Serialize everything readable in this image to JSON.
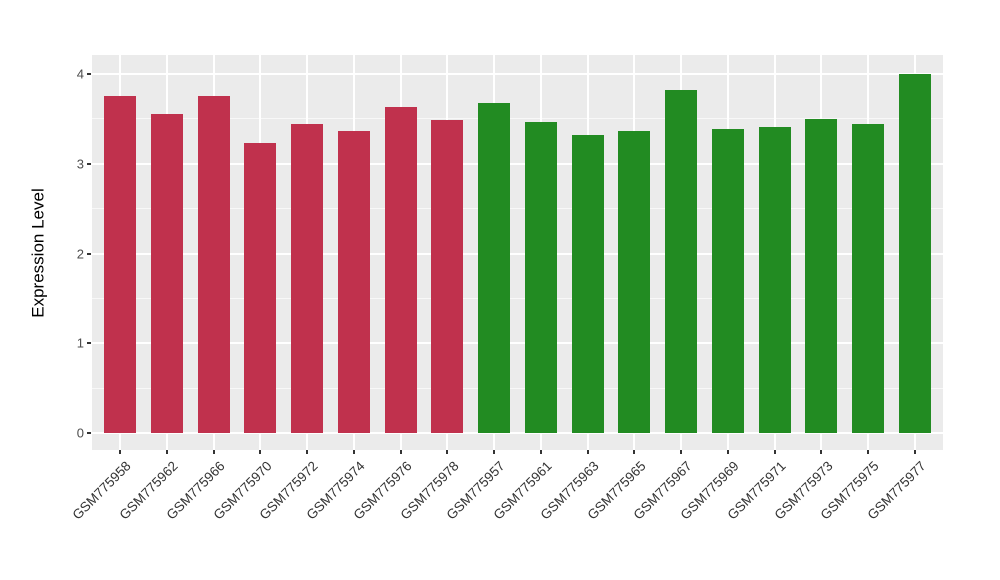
{
  "chart_data": {
    "type": "bar",
    "title": "",
    "xlabel": "",
    "ylabel": "Expression Level",
    "ylim": [
      -0.19,
      4.21
    ],
    "yticks": [
      0,
      1,
      2,
      3,
      4
    ],
    "grid": true,
    "legend": false,
    "panel_bg": "#EBEBEB",
    "grid_color": "#FFFFFF",
    "tick_mark_color": "#333333",
    "tick_label_color": "#4d4d4d",
    "bar_colors": {
      "red": "#C0314D",
      "green": "#228B22"
    },
    "bars": [
      {
        "label": "GSM775958",
        "value": 3.75,
        "color": "#C0314D"
      },
      {
        "label": "GSM775962",
        "value": 3.55,
        "color": "#C0314D"
      },
      {
        "label": "GSM775966",
        "value": 3.76,
        "color": "#C0314D"
      },
      {
        "label": "GSM775970",
        "value": 3.23,
        "color": "#C0314D"
      },
      {
        "label": "GSM775972",
        "value": 3.44,
        "color": "#C0314D"
      },
      {
        "label": "GSM775974",
        "value": 3.36,
        "color": "#C0314D"
      },
      {
        "label": "GSM775976",
        "value": 3.63,
        "color": "#C0314D"
      },
      {
        "label": "GSM775978",
        "value": 3.49,
        "color": "#C0314D"
      },
      {
        "label": "GSM775957",
        "value": 3.68,
        "color": "#228B22"
      },
      {
        "label": "GSM775961",
        "value": 3.47,
        "color": "#228B22"
      },
      {
        "label": "GSM775963",
        "value": 3.32,
        "color": "#228B22"
      },
      {
        "label": "GSM775965",
        "value": 3.36,
        "color": "#228B22"
      },
      {
        "label": "GSM775967",
        "value": 3.82,
        "color": "#228B22"
      },
      {
        "label": "GSM775969",
        "value": 3.39,
        "color": "#228B22"
      },
      {
        "label": "GSM775971",
        "value": 3.41,
        "color": "#228B22"
      },
      {
        "label": "GSM775973",
        "value": 3.5,
        "color": "#228B22"
      },
      {
        "label": "GSM775975",
        "value": 3.44,
        "color": "#228B22"
      },
      {
        "label": "GSM775977",
        "value": 4.0,
        "color": "#228B22"
      }
    ]
  }
}
